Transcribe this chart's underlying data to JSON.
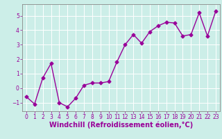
{
  "x": [
    0,
    1,
    2,
    3,
    4,
    5,
    6,
    7,
    8,
    9,
    10,
    11,
    12,
    13,
    14,
    15,
    16,
    17,
    18,
    19,
    20,
    21,
    22,
    23
  ],
  "y": [
    -0.6,
    -1.1,
    0.7,
    1.7,
    -1.0,
    -1.3,
    -0.7,
    0.2,
    0.35,
    0.35,
    0.45,
    1.8,
    3.0,
    3.7,
    3.1,
    3.9,
    4.3,
    4.55,
    4.5,
    3.6,
    3.7,
    5.2,
    3.6,
    5.3
  ],
  "line_color": "#990099",
  "marker": "D",
  "marker_size": 2.5,
  "bg_color": "#cceee8",
  "grid_color": "#ffffff",
  "xlabel": "Windchill (Refroidissement éolien,°C)",
  "xlabel_color": "#990099",
  "tick_color": "#990099",
  "axis_color": "#888888",
  "ylim": [
    -1.6,
    5.8
  ],
  "xlim": [
    -0.5,
    23.5
  ],
  "yticks": [
    -1,
    0,
    1,
    2,
    3,
    4,
    5
  ],
  "xticks": [
    0,
    1,
    2,
    3,
    4,
    5,
    6,
    7,
    8,
    9,
    10,
    11,
    12,
    13,
    14,
    15,
    16,
    17,
    18,
    19,
    20,
    21,
    22,
    23
  ],
  "tick_fontsize": 5.5,
  "xlabel_fontsize": 7.0,
  "linewidth": 1.0
}
